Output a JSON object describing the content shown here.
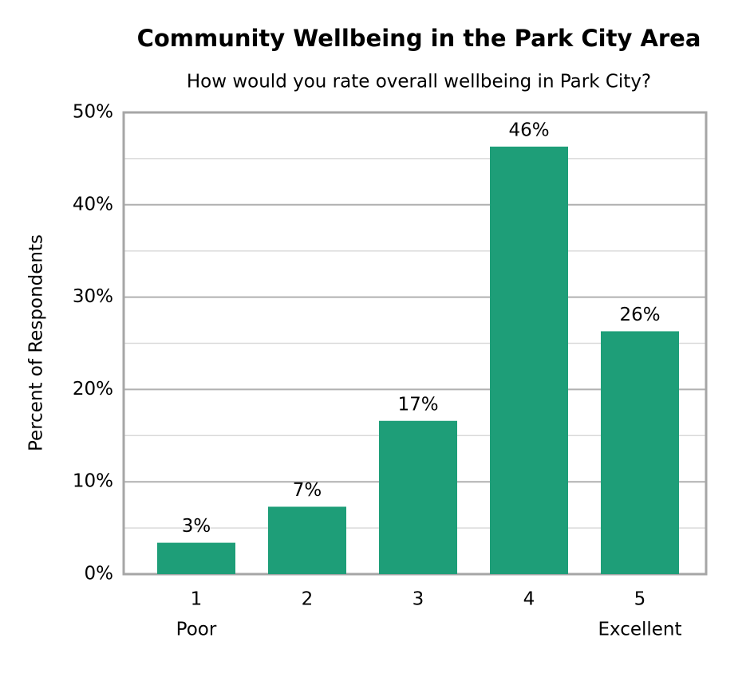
{
  "chart_data": {
    "type": "bar",
    "title": "Community Wellbeing in the Park City Area",
    "subtitle": "How would you rate overall wellbeing in Park City?",
    "y_label": "Percent of Respondents",
    "categories": [
      "1",
      "2",
      "3",
      "4",
      "5"
    ],
    "category_sublabels": [
      "Poor",
      null,
      null,
      null,
      "Excellent"
    ],
    "values": [
      3.4,
      7.3,
      16.6,
      46.3,
      26.3
    ],
    "value_labels": [
      "3%",
      "7%",
      "17%",
      "46%",
      "26%"
    ],
    "color": "#1e9e78",
    "ylim": [
      0,
      50
    ],
    "yticks": [
      {
        "value": 0,
        "label": "0%"
      },
      {
        "value": 10,
        "label": "10%"
      },
      {
        "value": 20,
        "label": "20%"
      },
      {
        "value": 30,
        "label": "30%"
      },
      {
        "value": 40,
        "label": "40%"
      },
      {
        "value": 50,
        "label": "50%"
      }
    ],
    "minor_gridlines": [
      5,
      15,
      25,
      35,
      45
    ],
    "grid": true
  }
}
